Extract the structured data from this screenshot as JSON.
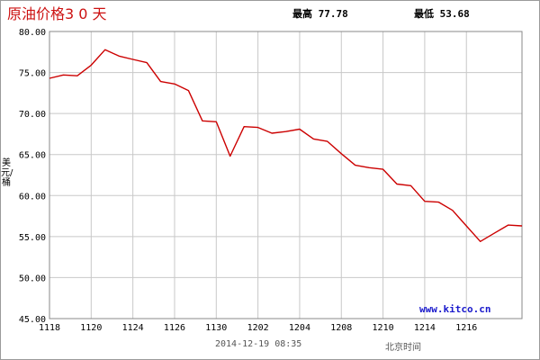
{
  "header": {
    "title": "原油价格3 0 天",
    "high_label": "最高",
    "high_value": "77.78",
    "low_label": "最低",
    "low_value": "53.68"
  },
  "watermark": "www.kitco.cn",
  "timestamp": "2014-12-19 08:35",
  "timezone_label": "北京时间",
  "colors": {
    "line": "#cc0000",
    "grid": "#c8c8c8",
    "watermark": "#1a1acc",
    "title": "#cc1111"
  },
  "chart_data": {
    "type": "line",
    "title": "原油价格3 0 天",
    "ylabel": "美元/桶",
    "xlabel": "北京时间",
    "ylim": [
      45,
      80
    ],
    "xlim": [
      0,
      34
    ],
    "grid": true,
    "y_ticks": [
      "45.00",
      "50.00",
      "55.00",
      "60.00",
      "65.00",
      "70.00",
      "75.00",
      "80.00"
    ],
    "x_ticks": [
      {
        "x": 0,
        "label": "1118"
      },
      {
        "x": 3,
        "label": "1120"
      },
      {
        "x": 6,
        "label": "1124"
      },
      {
        "x": 9,
        "label": "1126"
      },
      {
        "x": 12,
        "label": "1130"
      },
      {
        "x": 15,
        "label": "1202"
      },
      {
        "x": 18,
        "label": "1204"
      },
      {
        "x": 21,
        "label": "1208"
      },
      {
        "x": 24,
        "label": "1210"
      },
      {
        "x": 27,
        "label": "1214"
      },
      {
        "x": 30,
        "label": "1216"
      }
    ],
    "series": [
      {
        "x": [
          0,
          1,
          2,
          3,
          4,
          5,
          6,
          7,
          8,
          9,
          10,
          11,
          12,
          13,
          14,
          15,
          16,
          17,
          18,
          19,
          20,
          21,
          22,
          23,
          24,
          25,
          26,
          27,
          28,
          29,
          30,
          31,
          32,
          33,
          34
        ],
        "values": [
          74.3,
          74.7,
          74.6,
          75.9,
          77.78,
          77.0,
          76.6,
          76.2,
          73.9,
          73.6,
          72.8,
          69.1,
          69.0,
          64.8,
          68.4,
          68.3,
          67.6,
          67.8,
          68.1,
          66.9,
          66.6,
          65.1,
          63.7,
          63.4,
          63.2,
          61.4,
          61.2,
          59.3,
          59.2,
          58.2,
          56.3,
          54.4,
          55.4,
          56.4,
          56.3
        ]
      }
    ]
  }
}
